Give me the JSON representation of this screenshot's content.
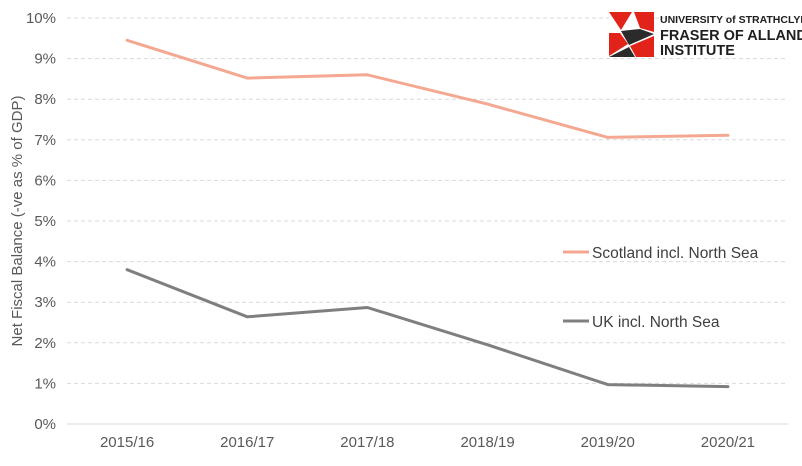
{
  "logo": {
    "line1": "UNIVERSITY of STRATHCLYDE",
    "line2": "FRASER OF ALLANDER",
    "line3": "INSTITUTE",
    "colors": {
      "red": "#e2231a",
      "dark": "#2b2b2b"
    }
  },
  "chart_data": {
    "type": "line",
    "categories": [
      "2015/16",
      "2016/17",
      "2017/18",
      "2018/19",
      "2019/20",
      "2020/21"
    ],
    "series": [
      {
        "name": "Scotland incl. North Sea",
        "values": [
          9.45,
          8.52,
          8.6,
          7.88,
          7.06,
          7.11
        ],
        "color": "#f4a891"
      },
      {
        "name": "UK incl. North Sea",
        "values": [
          3.8,
          2.64,
          2.87,
          1.95,
          0.97,
          0.92
        ],
        "color": "#7f7f7f"
      }
    ],
    "ylabel": "Net Fiscal Balance (-ve as % of GDP)",
    "xlabel": "",
    "ylim": [
      0,
      10
    ],
    "yticks": [
      "0%",
      "1%",
      "2%",
      "3%",
      "4%",
      "5%",
      "6%",
      "7%",
      "8%",
      "9%",
      "10%"
    ],
    "grid": true,
    "legend_position": "right"
  }
}
